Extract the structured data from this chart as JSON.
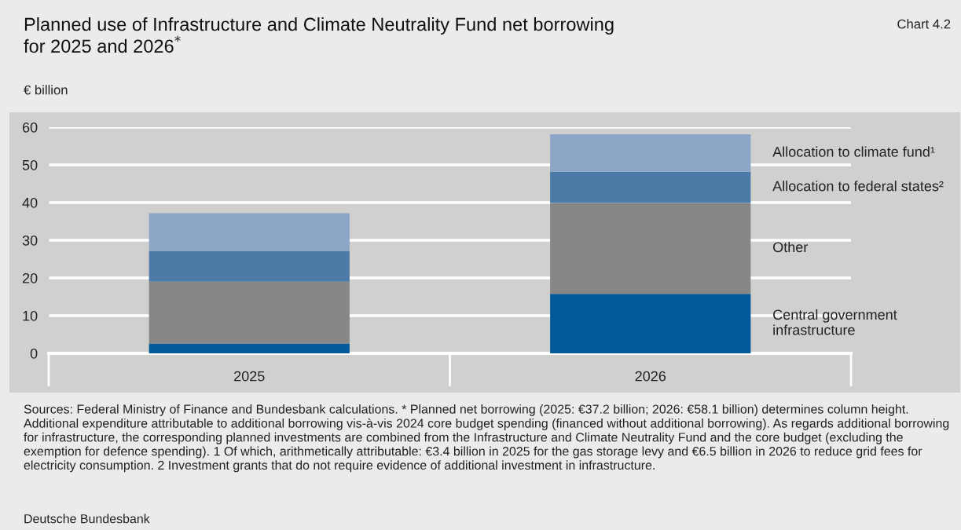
{
  "chart_data": {
    "type": "bar",
    "stacked": true,
    "title": "Planned use of Infrastructure and Climate Neutrality Fund net borrowing\nfor 2025 and 2026$^{*}$",
    "ylabel": "€ billion",
    "categories": [
      "2025",
      "2026"
    ],
    "series": [
      {
        "name": "Central government\ninfrastructure",
        "color": "#005a9a",
        "values": [
          2.6,
          15.8
        ]
      },
      {
        "name": "Other",
        "color": "#878786",
        "values": [
          16.4,
          24.1
        ]
      },
      {
        "name": "Allocation to federal states²",
        "color": "#4e7aa7",
        "values": [
          8.2,
          8.3
        ]
      },
      {
        "name": "Allocation to climate fund¹",
        "color": "#8da6c8",
        "values": [
          10.0,
          9.9
        ]
      }
    ],
    "ylim": [
      0,
      60
    ],
    "yticks": [
      0,
      10,
      20,
      30,
      40,
      50,
      60
    ],
    "grid": "y",
    "legend": false,
    "annotations": [
      "Chart 4.2",
      "Sources: Federal Ministry of Finance and Bundesbank calculations. * Planned net borrowing (2025: €37.2 billion; 2026: €58.1 billion) determines column height. Additional expenditure attributable to additional borrowing vis-à-vis 2024 core budget spending (financed without additional borrowing). As regards additional borrowing for infrastructure, the corresponding planned investments are combined from the Infrastructure and Climate Neutrality Fund and the core budget (excluding the exemption for defence spending). 1 Of which, arithmetically attributable: €3.4 billion in 2025 for the gas storage levy and €6.5 billion in 2026 to reduce grid fees for electricity consumption. 2 Investment grants that do not require evidence of additional investment in infrastructure.",
      "Deutsche Bundesbank"
    ]
  }
}
